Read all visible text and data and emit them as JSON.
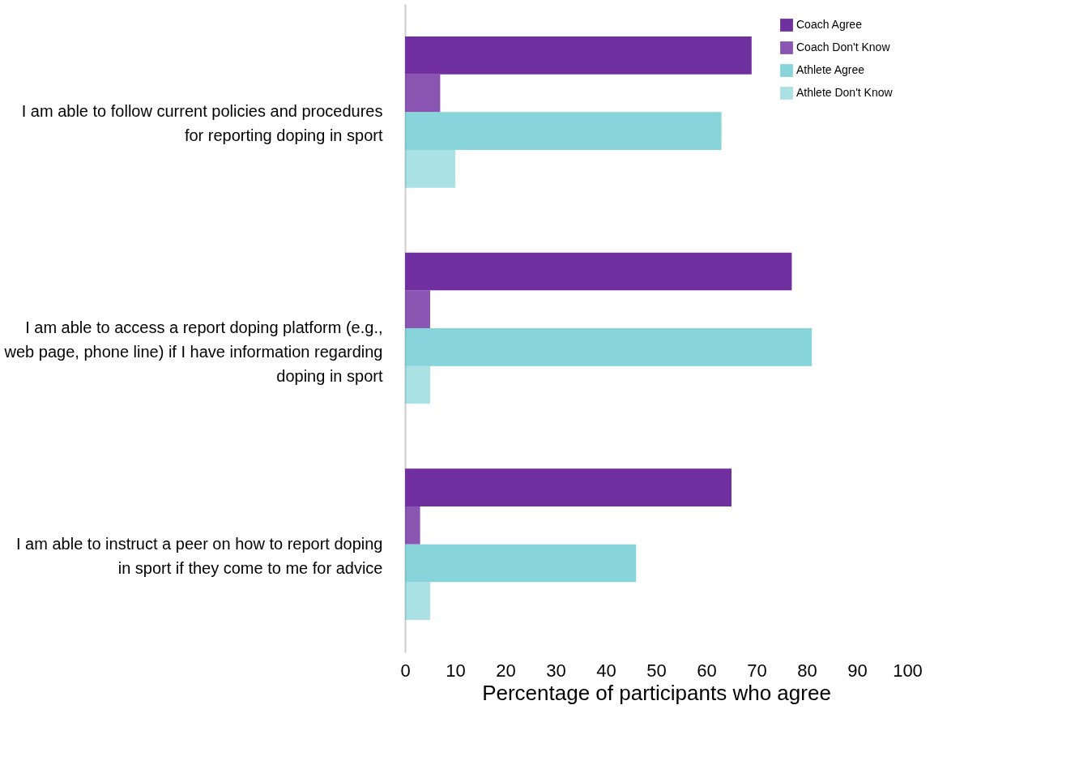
{
  "chart_data": {
    "type": "bar",
    "orientation": "horizontal",
    "xlabel": "Percentage of participants who agree",
    "categories": [
      "I am able to follow current policies and procedures for reporting doping in sport",
      "I am able to access a report doping platform (e.g., web page, phone line) if I have information regarding doping in sport",
      "I am able to instruct a peer on how to report doping in sport if they come to me for advice"
    ],
    "series": [
      {
        "name": "Coach Agree",
        "color": "#7030a0",
        "values": [
          69,
          77,
          65
        ]
      },
      {
        "name": "Coach Don't Know",
        "color": "#7030a0",
        "values": [
          7,
          5,
          3
        ]
      },
      {
        "name": "Athlete Agree",
        "color": "#42bcc5",
        "values": [
          63,
          81,
          46
        ]
      },
      {
        "name": "Athlete Don't Know",
        "color": "#42bcc5",
        "values": [
          10,
          5,
          5
        ]
      }
    ],
    "xlim": [
      0,
      100
    ],
    "xticks": [
      0,
      10,
      20,
      30,
      40,
      50,
      60,
      70,
      80,
      90,
      100
    ],
    "grid": false,
    "legend": "top right"
  }
}
